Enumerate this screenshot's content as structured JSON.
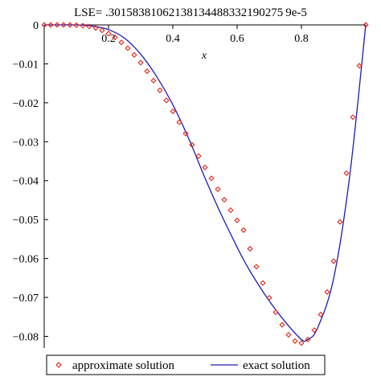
{
  "chart_data": {
    "type": "line",
    "title": "LSE= .30158381062138134488332190275 9e-5",
    "xlabel": "x",
    "ylabel": "",
    "xlim": [
      0,
      1
    ],
    "ylim": [
      -0.083,
      0
    ],
    "x_ticks": [
      0.2,
      0.4,
      0.6,
      0.8
    ],
    "x_tick_labels": [
      "0.2",
      "0.4",
      "0.6",
      "0.8"
    ],
    "y_ticks": [
      0,
      -0.01,
      -0.02,
      -0.03,
      -0.04,
      -0.05,
      -0.06,
      -0.07,
      -0.08
    ],
    "y_tick_labels": [
      "0",
      "−0.01",
      "−0.02",
      "−0.03",
      "−0.04",
      "−0.05",
      "−0.06",
      "−0.07",
      "−0.08"
    ],
    "legend_position": "bottom",
    "series": [
      {
        "name": "approximate solution",
        "style": "markers",
        "marker": "diamond",
        "color": "#e0231c",
        "x": [
          0.0,
          0.02,
          0.04,
          0.06,
          0.08,
          0.1,
          0.12,
          0.14,
          0.16,
          0.18,
          0.2,
          0.22,
          0.24,
          0.26,
          0.28,
          0.3,
          0.32,
          0.34,
          0.36,
          0.38,
          0.4,
          0.42,
          0.44,
          0.46,
          0.48,
          0.5,
          0.52,
          0.54,
          0.56,
          0.58,
          0.6,
          0.62,
          0.64,
          0.66,
          0.68,
          0.7,
          0.72,
          0.74,
          0.76,
          0.78,
          0.8,
          0.82,
          0.84,
          0.86,
          0.88,
          0.9,
          0.92,
          0.94,
          0.96,
          0.98,
          1.0
        ],
        "y": [
          0.0,
          0.0,
          0.0,
          0.0,
          0.0,
          -0.0001,
          -0.0002,
          -0.0004,
          -0.0008,
          -0.0014,
          -0.0022,
          -0.0032,
          -0.0045,
          -0.006,
          -0.0077,
          -0.0097,
          -0.0119,
          -0.0143,
          -0.0168,
          -0.0194,
          -0.0222,
          -0.025,
          -0.0279,
          -0.0308,
          -0.0337,
          -0.0366,
          -0.0394,
          -0.0422,
          -0.0449,
          -0.0476,
          -0.0502,
          -0.0527,
          -0.0575,
          -0.0621,
          -0.0663,
          -0.0701,
          -0.0738,
          -0.077,
          -0.0796,
          -0.0812,
          -0.0817,
          -0.0808,
          -0.0784,
          -0.0744,
          -0.0686,
          -0.0607,
          -0.0506,
          -0.0381,
          -0.0237,
          -0.0105,
          0.0
        ]
      },
      {
        "name": "exact solution",
        "style": "line",
        "color": "#1c1cb8",
        "x": [
          0.0,
          0.05,
          0.1,
          0.15,
          0.2,
          0.25,
          0.3,
          0.35,
          0.4,
          0.45,
          0.5,
          0.55,
          0.6,
          0.62,
          0.65,
          0.7,
          0.75,
          0.8,
          0.82,
          0.85,
          0.9,
          0.95,
          1.0
        ],
        "y": [
          0.0,
          0.0,
          0.0,
          -0.0003,
          -0.0012,
          -0.0034,
          -0.0075,
          -0.0133,
          -0.0205,
          -0.0293,
          -0.0393,
          -0.0486,
          -0.0571,
          -0.0603,
          -0.0646,
          -0.0709,
          -0.0763,
          -0.0808,
          -0.0808,
          -0.0779,
          -0.0652,
          -0.0389,
          0.0
        ]
      }
    ]
  }
}
